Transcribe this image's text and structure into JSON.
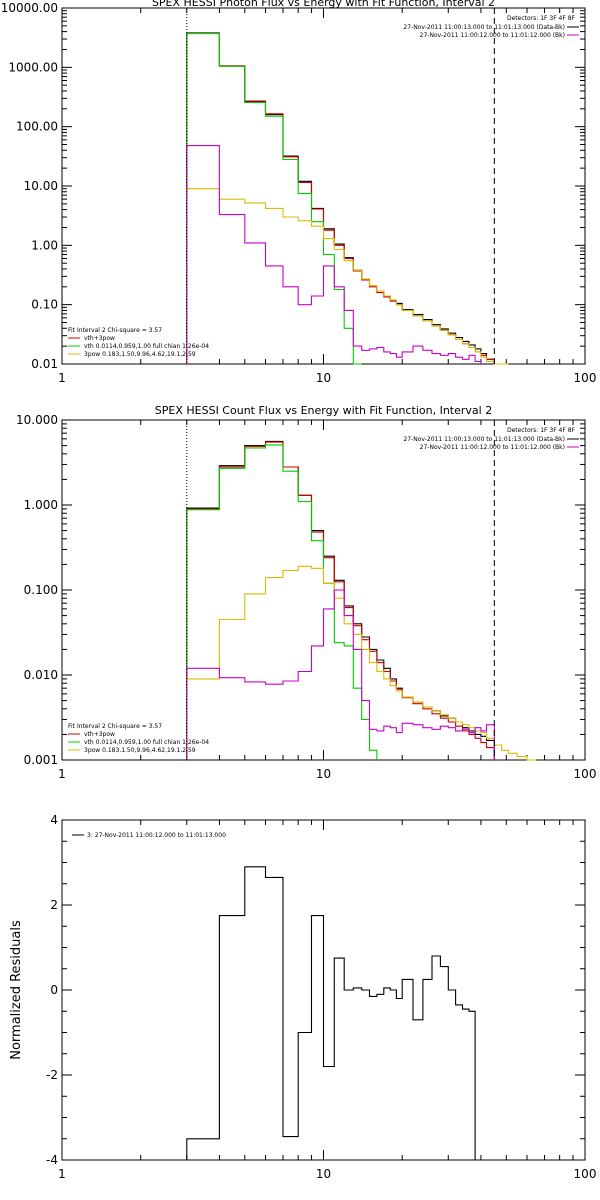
{
  "chart_data": [
    {
      "type": "line",
      "title": "SPEX HESSI Photon Flux vs Energy with Fit Function, Interval 2",
      "xlabel": "",
      "ylabel": "",
      "xscale": "log",
      "yscale": "log",
      "xlim": [
        1,
        100
      ],
      "ylim": [
        0.01,
        10000
      ],
      "x_ticks": [
        {
          "v": 1,
          "label": "1"
        },
        {
          "v": 10,
          "label": "10"
        },
        {
          "v": 100,
          "label": "100"
        }
      ],
      "y_ticks": [
        {
          "v": 0.01,
          "label": "0.01"
        },
        {
          "v": 0.1,
          "label": "0.10"
        },
        {
          "v": 1,
          "label": "1.00"
        },
        {
          "v": 10,
          "label": "10.00"
        },
        {
          "v": 100,
          "label": "100.00"
        },
        {
          "v": 1000,
          "label": "1000.00"
        },
        {
          "v": 10000,
          "label": "10000.00"
        }
      ],
      "vlines": [
        {
          "x": 3.0,
          "style": "dotted",
          "color": "#000000"
        },
        {
          "x": 45,
          "style": "dashed",
          "color": "#000000"
        }
      ],
      "legend_top_right": {
        "heading": "Detectors: 1F 3F 4F 8F",
        "entries": [
          {
            "label": "27-Nov-2011 11:00:13.000 to 11:01:13.000 (Data-Bk)",
            "color": "#000000"
          },
          {
            "label": "27-Nov-2011 11:00:12.000 to 11:01:12.000 (Bk)",
            "color": "#cc00cc"
          }
        ]
      },
      "legend_bottom_left": {
        "heading": "Fit Interval 2   Chi-square = 3.57",
        "entries": [
          {
            "label": "vth+3pow",
            "color": "#cc0000"
          },
          {
            "label": "vth 0.0114,0.959,1.00  full chian 1.26e-04",
            "color": "#00cc00"
          },
          {
            "label": "3pow 0.183,1.50,9.96,4.62,19.1,2.59",
            "color": "#ddbb00"
          }
        ]
      },
      "edges": [
        3.0,
        4.0,
        5.0,
        6.0,
        7.0,
        8.0,
        9.0,
        10.0,
        11.0,
        12.0,
        13.0,
        14.0,
        15.0,
        16.0,
        17.0,
        18.0,
        19.0,
        20.0,
        22.0,
        24.0,
        26.0,
        28.0,
        30.0,
        32.0,
        34.0,
        36.0,
        38.0,
        40.0,
        42.0,
        45.0,
        48.0,
        51.0
      ],
      "series": [
        {
          "name": "data",
          "color": "#000000",
          "values": [
            3800,
            1050,
            260,
            160,
            32,
            12,
            4.2,
            1.9,
            1.05,
            0.62,
            0.38,
            0.27,
            0.21,
            0.17,
            0.14,
            0.12,
            0.105,
            0.083,
            0.068,
            0.056,
            0.046,
            0.039,
            0.033,
            0.028,
            0.024,
            0.021,
            0.018,
            0.015,
            0.012
          ]
        },
        {
          "name": "vth+3pow",
          "color": "#cc0000",
          "values": [
            3750,
            1060,
            270,
            165,
            31,
            11.5,
            4.1,
            1.8,
            1.0,
            0.6,
            0.37,
            0.26,
            0.2,
            0.16,
            0.135,
            0.115,
            0.1,
            0.08,
            0.065,
            0.053,
            0.044,
            0.037,
            0.031,
            0.026,
            0.022,
            0.019,
            0.016,
            0.014,
            0.012,
            0.01
          ]
        },
        {
          "name": "vth",
          "color": "#00cc00",
          "values": [
            3700,
            1040,
            255,
            150,
            28,
            7.5,
            2.5,
            0.7,
            0.18,
            0.04,
            0.006
          ]
        },
        {
          "name": "3pow",
          "color": "#ddbb00",
          "values": [
            9,
            6,
            5.2,
            4.2,
            3.0,
            2.6,
            2.1,
            1.3,
            0.85,
            0.55,
            0.38,
            0.27,
            0.21,
            0.17,
            0.14,
            0.12,
            0.1,
            0.08,
            0.065,
            0.053,
            0.044,
            0.037,
            0.031,
            0.026,
            0.022,
            0.019,
            0.016,
            0.013,
            0.011,
            0.009,
            0.008
          ]
        },
        {
          "name": "background",
          "color": "#cc00cc",
          "values": [
            48,
            3.3,
            1.1,
            0.45,
            0.2,
            0.1,
            0.14,
            0.45,
            0.2,
            0.08,
            0.02,
            0.017,
            0.018,
            0.019,
            0.016,
            0.015,
            0.013,
            0.016,
            0.02,
            0.017,
            0.015,
            0.014,
            0.015,
            0.013,
            0.012,
            0.014,
            0.011
          ]
        }
      ]
    },
    {
      "type": "line",
      "title": "SPEX HESSI Count Flux vs Energy with Fit Function, Interval 2",
      "xlabel": "",
      "ylabel": "",
      "xscale": "log",
      "yscale": "log",
      "xlim": [
        1,
        100
      ],
      "ylim": [
        0.001,
        10
      ],
      "x_ticks": [
        {
          "v": 1,
          "label": "1"
        },
        {
          "v": 10,
          "label": "10"
        },
        {
          "v": 100,
          "label": "100"
        }
      ],
      "y_ticks": [
        {
          "v": 0.001,
          "label": "0.001"
        },
        {
          "v": 0.01,
          "label": "0.010"
        },
        {
          "v": 0.1,
          "label": "0.100"
        },
        {
          "v": 1,
          "label": "1.000"
        },
        {
          "v": 10,
          "label": "10.000"
        }
      ],
      "vlines": [
        {
          "x": 3.0,
          "style": "dotted",
          "color": "#000000"
        },
        {
          "x": 45,
          "style": "dashed",
          "color": "#000000"
        }
      ],
      "legend_top_right": {
        "heading": "Detectors: 1F 3F 4F 8F",
        "entries": [
          {
            "label": "27-Nov-2011 11:00:13.000 to 11:01:13.000 (Data-Bk)",
            "color": "#000000"
          },
          {
            "label": "27-Nov-2011 11:00:12.000 to 11:01:12.000 (Bk)",
            "color": "#cc00cc"
          }
        ]
      },
      "legend_bottom_left": {
        "heading": "Fit Interval 2   Chi-square = 3.57",
        "entries": [
          {
            "label": "vth+3pow",
            "color": "#cc0000"
          },
          {
            "label": "vth 0.0114,0.959,1.00  full chian 1.26e-04",
            "color": "#00cc00"
          },
          {
            "label": "3pow 0.183,1.50,9.96,4.62,19.1,2.59",
            "color": "#ddbb00"
          }
        ]
      },
      "edges": [
        3.0,
        4.0,
        5.0,
        6.0,
        7.0,
        8.0,
        9.0,
        10.0,
        11.0,
        12.0,
        13.0,
        14.0,
        15.0,
        16.0,
        17.0,
        18.0,
        19.0,
        20.0,
        22.0,
        24.0,
        26.0,
        28.0,
        30.0,
        32.0,
        34.0,
        36.0,
        38.0,
        40.0,
        42.0,
        45.0,
        48.0,
        51.0,
        55.0,
        60.0,
        65.0
      ],
      "series": [
        {
          "name": "data",
          "color": "#000000",
          "values": [
            0.92,
            2.9,
            5.0,
            5.6,
            2.8,
            1.3,
            0.5,
            0.25,
            0.13,
            0.065,
            0.04,
            0.028,
            0.02,
            0.015,
            0.012,
            0.009,
            0.007,
            0.0055,
            0.0048,
            0.0042,
            0.0038,
            0.0033,
            0.0031,
            0.0028,
            0.0024,
            0.0022,
            0.002,
            0.0019,
            0.0017
          ]
        },
        {
          "name": "vth+3pow",
          "color": "#cc0000",
          "values": [
            0.9,
            2.8,
            4.9,
            5.5,
            2.8,
            1.3,
            0.48,
            0.24,
            0.125,
            0.062,
            0.038,
            0.026,
            0.019,
            0.014,
            0.011,
            0.0085,
            0.0068,
            0.0054,
            0.0046,
            0.004,
            0.0035,
            0.0031,
            0.0028,
            0.0025,
            0.0022,
            0.002,
            0.0018,
            0.0016,
            0.0014
          ]
        },
        {
          "name": "vth",
          "color": "#00cc00",
          "values": [
            0.88,
            2.7,
            4.7,
            5.1,
            2.5,
            1.1,
            0.38,
            0.12,
            0.024,
            0.022,
            0.007,
            0.003,
            0.0013
          ]
        },
        {
          "name": "3pow",
          "color": "#ddbb00",
          "values": [
            0.009,
            0.045,
            0.09,
            0.14,
            0.17,
            0.19,
            0.18,
            0.12,
            0.08,
            0.04,
            0.03,
            0.02,
            0.014,
            0.011,
            0.009,
            0.0075,
            0.0065,
            0.0055,
            0.0048,
            0.0042,
            0.0038,
            0.0034,
            0.0031,
            0.0028,
            0.0026,
            0.0024,
            0.0022,
            0.0021,
            0.0018,
            0.0015,
            0.0013,
            0.0012,
            0.0011,
            0.001
          ]
        },
        {
          "name": "background",
          "color": "#cc00cc",
          "values": [
            0.012,
            0.0093,
            0.0083,
            0.0078,
            0.0085,
            0.011,
            0.022,
            0.06,
            0.1,
            0.05,
            0.02,
            0.005,
            0.0023,
            0.0022,
            0.0025,
            0.0024,
            0.0021,
            0.0027,
            0.0026,
            0.0024,
            0.0023,
            0.0025,
            0.0024,
            0.0022,
            0.0023,
            0.0021,
            0.0024,
            0.0022,
            0.0026
          ]
        }
      ]
    },
    {
      "type": "line",
      "title": "",
      "xlabel": "",
      "ylabel": "Normalized Residuals",
      "xscale": "log",
      "yscale": "linear",
      "xlim": [
        1,
        100
      ],
      "ylim": [
        -4,
        4
      ],
      "x_ticks": [
        {
          "v": 1,
          "label": "1"
        },
        {
          "v": 10,
          "label": "10"
        },
        {
          "v": 100,
          "label": "100"
        }
      ],
      "y_ticks": [
        {
          "v": -4,
          "label": "-4"
        },
        {
          "v": -2,
          "label": "-2"
        },
        {
          "v": 0,
          "label": "0"
        },
        {
          "v": 2,
          "label": "2"
        },
        {
          "v": 4,
          "label": "4"
        }
      ],
      "vlines": [],
      "legend_top_left": {
        "entries": [
          {
            "label": "3: 27-Nov-2011 11:00:12.000 to 11:01:13.000",
            "color": "#000000"
          }
        ]
      },
      "edges": [
        3.0,
        4.0,
        5.0,
        6.0,
        7.0,
        8.0,
        9.0,
        10.0,
        11.0,
        12.0,
        13.0,
        14.0,
        15.0,
        16.0,
        17.0,
        18.0,
        19.0,
        20.0,
        22.0,
        24.0,
        26.0,
        28.0,
        30.0,
        32.0,
        34.0,
        36.0,
        38.0,
        40.0,
        42.0,
        45.0
      ],
      "series": [
        {
          "name": "residuals",
          "color": "#000000",
          "values": [
            -3.5,
            1.75,
            2.9,
            2.65,
            -3.45,
            -1.0,
            1.75,
            -1.8,
            0.75,
            0.0,
            0.05,
            0.0,
            -0.15,
            -0.1,
            0.05,
            0.0,
            -0.2,
            0.25,
            -0.7,
            0.25,
            0.8,
            0.55,
            0.0,
            -0.35,
            -0.45,
            -0.5,
            -4.0,
            -4.0,
            -4.0
          ]
        }
      ]
    }
  ]
}
